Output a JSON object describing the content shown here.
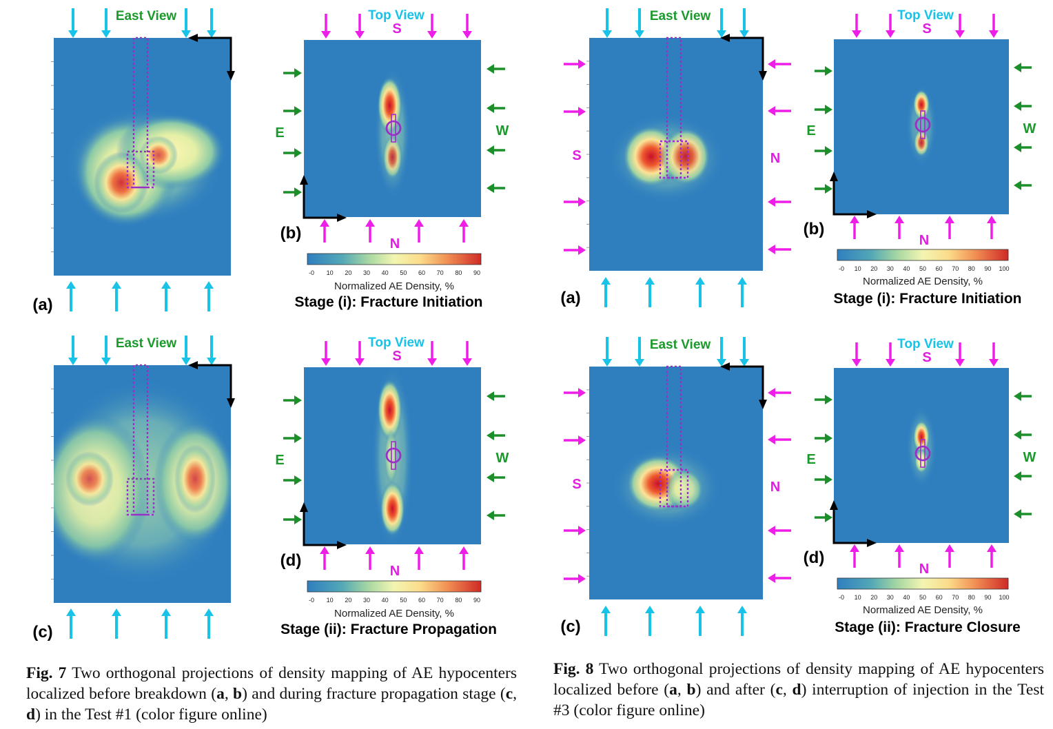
{
  "colors": {
    "background": "#2f7fbf",
    "cyan_arrow": "#19c3e8",
    "magenta_arrow": "#ee1ee8",
    "green_arrow": "#1a8f2a",
    "well_outline": "#9b30c8",
    "label_green": "#1a9a2a",
    "label_cyan": "#19c3e8",
    "label_magenta": "#e01ee0"
  },
  "labels": {
    "east_view": "East View",
    "top_view": "Top View",
    "S": "S",
    "N": "N",
    "E": "E",
    "W": "W",
    "panel_a": "(a)",
    "panel_b": "(b)",
    "panel_c": "(c)",
    "panel_d": "(d)",
    "colorbar_title": "Normalized AE Density, %"
  },
  "colorbars": {
    "fig7_ticks": [
      "-0",
      "10",
      "20",
      "30",
      "40",
      "50",
      "60",
      "70",
      "80",
      "90"
    ],
    "fig8_ticks": [
      "-0",
      "10",
      "20",
      "30",
      "40",
      "50",
      "60",
      "70",
      "80",
      "90",
      "100"
    ]
  },
  "stages": {
    "fig7_top": "Stage (i): Fracture Initiation",
    "fig7_bottom": "Stage (ii): Fracture Propagation",
    "fig8_top": "Stage (i): Fracture Initiation",
    "fig8_bottom": "Stage (ii): Fracture Closure"
  },
  "captions": {
    "fig7": {
      "label": "Fig. 7",
      "t1": " Two orthogonal projections of density mapping of AE hypocenters localized before breakdown (",
      "a": "a",
      "comma1": ", ",
      "b": "b",
      "t2": ") and during fracture propagation stage (",
      "c": "c",
      "comma2": ", ",
      "d": "d",
      "t3": ") in the Test #1 (color figure online)"
    },
    "fig8": {
      "label": "Fig. 8",
      "t1": " Two orthogonal projections of density mapping of AE hypocenters localized before (",
      "a": "a",
      "comma1": ", ",
      "b": "b",
      "t2": ") and after (",
      "c": "c",
      "comma2": ", ",
      "d": "d",
      "t3": ") interruption of injection in the Test #3 (color figure online)"
    }
  }
}
